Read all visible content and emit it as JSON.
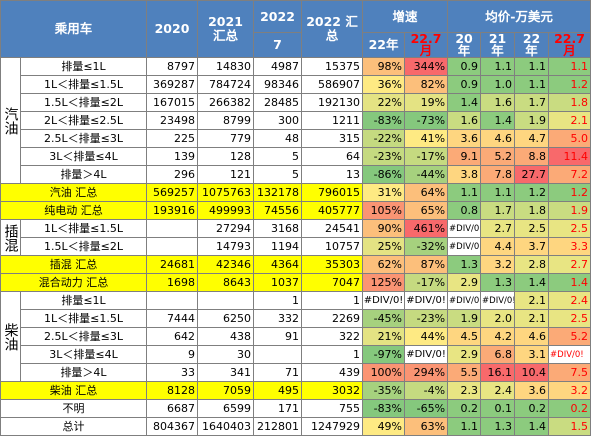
{
  "headers": {
    "vehicle": "乘用车",
    "y2020": "2020",
    "y2021": "2021 汇总",
    "y2022": "2022",
    "m7": "7",
    "y2022sum": "2022 汇总",
    "growth": "增速",
    "g22": "22年",
    "g227": "22.7月",
    "price": "均价-万美元",
    "p20": "20年",
    "p21": "21年",
    "p22": "22年",
    "p227": "22.7月"
  },
  "groups": {
    "gas": "汽油",
    "phev": "插混",
    "diesel": "柴油"
  },
  "colors": {
    "header_bg": "#4f81bd",
    "total_bg": "#ffff00",
    "red_text": "#ff0000"
  },
  "rows": [
    {
      "label": "排量≤1L",
      "c2020": "8797",
      "c2021": "14830",
      "c7": "4987",
      "c2022": "15375",
      "g22": "98%",
      "g227": "344%",
      "p20": "0.9",
      "p21": "1.1",
      "p22": "1.1",
      "p227": "1.1"
    },
    {
      "label": "1L＜排量≤1.5L",
      "c2020": "369287",
      "c2021": "784724",
      "c7": "98346",
      "c2022": "586907",
      "g22": "36%",
      "g227": "82%",
      "p20": "0.9",
      "p21": "1.0",
      "p22": "1.1",
      "p227": "1.2"
    },
    {
      "label": "1.5L＜排量≤2L",
      "c2020": "167015",
      "c2021": "266382",
      "c7": "28485",
      "c2022": "192130",
      "g22": "22%",
      "g227": "19%",
      "p20": "1.4",
      "p21": "1.6",
      "p22": "1.7",
      "p227": "1.8"
    },
    {
      "label": "2L＜排量≤2.5L",
      "c2020": "23498",
      "c2021": "8799",
      "c7": "300",
      "c2022": "1211",
      "g22": "-83%",
      "g227": "-73%",
      "p20": "1.6",
      "p21": "1.4",
      "p22": "1.9",
      "p227": "2.1"
    },
    {
      "label": "2.5L＜排量≤3L",
      "c2020": "225",
      "c2021": "779",
      "c7": "48",
      "c2022": "315",
      "g22": "-22%",
      "g227": "41%",
      "p20": "3.6",
      "p21": "4.6",
      "p22": "4.7",
      "p227": "5.0"
    },
    {
      "label": "3L＜排量≤4L",
      "c2020": "139",
      "c2021": "128",
      "c7": "5",
      "c2022": "64",
      "g22": "-23%",
      "g227": "-17%",
      "p20": "9.1",
      "p21": "5.2",
      "p22": "8.8",
      "p227": "11.4"
    },
    {
      "label": "排量＞4L",
      "c2020": "296",
      "c2021": "121",
      "c7": "5",
      "c2022": "13",
      "g22": "-86%",
      "g227": "-44%",
      "p20": "3.8",
      "p21": "7.8",
      "p22": "27.7",
      "p227": "7.2"
    },
    {
      "label": "汽油 汇总",
      "c2020": "569257",
      "c2021": "1075763",
      "c7": "132178",
      "c2022": "796015",
      "g22": "31%",
      "g227": "64%",
      "p20": "1.1",
      "p21": "1.1",
      "p22": "1.2",
      "p227": "1.2"
    },
    {
      "label": "纯电动 汇总",
      "c2020": "193916",
      "c2021": "499993",
      "c7": "74556",
      "c2022": "405777",
      "g22": "105%",
      "g227": "65%",
      "p20": "0.8",
      "p21": "1.7",
      "p22": "1.8",
      "p227": "1.9"
    },
    {
      "label": "1L＜排量≤1.5L",
      "c2020": "",
      "c2021": "27294",
      "c7": "3168",
      "c2022": "24541",
      "g22": "90%",
      "g227": "461%",
      "p20": "#DIV/0!",
      "p21": "2.7",
      "p22": "2.5",
      "p227": "2.5"
    },
    {
      "label": "1.5L＜排量≤2L",
      "c2020": "",
      "c2021": "14793",
      "c7": "1194",
      "c2022": "10757",
      "g22": "25%",
      "g227": "-32%",
      "p20": "#DIV/0!",
      "p21": "4.4",
      "p22": "3.7",
      "p227": "3.3"
    },
    {
      "label": "插混 汇总",
      "c2020": "24681",
      "c2021": "42346",
      "c7": "4364",
      "c2022": "35303",
      "g22": "62%",
      "g227": "87%",
      "p20": "1.3",
      "p21": "3.2",
      "p22": "2.8",
      "p227": "2.7"
    },
    {
      "label": "混合动力 汇总",
      "c2020": "1698",
      "c2021": "8643",
      "c7": "1037",
      "c2022": "7047",
      "g22": "125%",
      "g227": "-17%",
      "p20": "2.9",
      "p21": "1.3",
      "p22": "1.4",
      "p227": "1.4"
    },
    {
      "label": "排量≤1L",
      "c2020": "",
      "c2021": "",
      "c7": "1",
      "c2022": "1",
      "g22": "#DIV/0!",
      "g227": "#DIV/0!",
      "p20": "#DIV/0!",
      "p21": "#DIV/0!",
      "p22": "2.1",
      "p227": "2.4"
    },
    {
      "label": "1L＜排量≤1.5L",
      "c2020": "7444",
      "c2021": "6250",
      "c7": "332",
      "c2022": "2269",
      "g22": "-45%",
      "g227": "-23%",
      "p20": "1.9",
      "p21": "2.0",
      "p22": "2.1",
      "p227": "2.5"
    },
    {
      "label": "2.5L＜排量≤3L",
      "c2020": "642",
      "c2021": "438",
      "c7": "91",
      "c2022": "322",
      "g22": "21%",
      "g227": "44%",
      "p20": "4.5",
      "p21": "4.2",
      "p22": "4.6",
      "p227": "5.2"
    },
    {
      "label": "3L＜排量≤4L",
      "c2020": "9",
      "c2021": "30",
      "c7": "",
      "c2022": "1",
      "g22": "-97%",
      "g227": "#DIV/0!",
      "p20": "2.9",
      "p21": "6.8",
      "p22": "3.1",
      "p227": "#DIV/0!"
    },
    {
      "label": "排量＞4L",
      "c2020": "33",
      "c2021": "341",
      "c7": "71",
      "c2022": "439",
      "g22": "100%",
      "g227": "294%",
      "p20": "5.5",
      "p21": "16.1",
      "p22": "10.4",
      "p227": "7.5"
    },
    {
      "label": "柴油 汇总",
      "c2020": "8128",
      "c2021": "7059",
      "c7": "495",
      "c2022": "3032",
      "g22": "-35%",
      "g227": "-4%",
      "p20": "2.3",
      "p21": "2.4",
      "p22": "3.6",
      "p227": "3.2"
    },
    {
      "label": "不明",
      "c2020": "6687",
      "c2021": "6599",
      "c7": "171",
      "c2022": "755",
      "g22": "-83%",
      "g227": "-65%",
      "p20": "0.2",
      "p21": "0.1",
      "p22": "0.2",
      "p227": "0.2"
    },
    {
      "label": "总计",
      "c2020": "804367",
      "c2021": "1640403",
      "c7": "212801",
      "c2022": "1247929",
      "g22": "49%",
      "g227": "63%",
      "p20": "1.1",
      "p21": "1.3",
      "p22": "1.4",
      "p227": "1.5"
    }
  ]
}
